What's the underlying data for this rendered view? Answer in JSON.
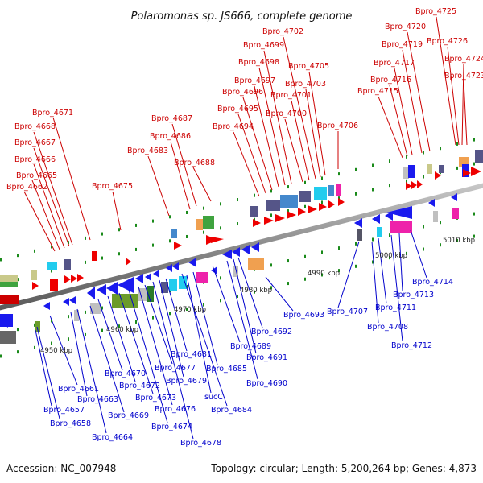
{
  "title": "Polaromonas sp. JS666, complete genome",
  "footer": {
    "accession": "Accession: NC_007948",
    "topology": "Topology: circular; Length: 5,200,264 bp; Genes: 4,873"
  },
  "colors": {
    "forward_label": "#cc0000",
    "reverse_label": "#0000cc",
    "backbone": "#808080",
    "tick": "#1a8a1a"
  },
  "kbp_labels": [
    "4950 kbp",
    "4960 kbp",
    "4970 kbp",
    "4980 kbp",
    "4990 kbp",
    "5000 kbp",
    "5010 kbp"
  ],
  "top_labels": [
    "Bpro_4662",
    "Bpro_4665",
    "Bpro_4666",
    "Bpro_4667",
    "Bpro_4668",
    "Bpro_4671",
    "Bpro_4675",
    "Bpro_4683",
    "Bpro_4686",
    "Bpro_4687",
    "Bpro_4688",
    "Bpro_4694",
    "Bpro_4695",
    "Bpro_4696",
    "Bpro_4697",
    "Bpro_4698",
    "Bpro_4699",
    "Bpro_4700",
    "Bpro_4701",
    "Bpro_4702",
    "Bpro_4703",
    "Bpro_4705",
    "Bpro_4706",
    "Bpro_4715",
    "Bpro_4716",
    "Bpro_4717",
    "Bpro_4719",
    "Bpro_4720",
    "Bpro_4723",
    "Bpro_4724",
    "Bpro_4725",
    "Bpro_4726"
  ],
  "bottom_labels": [
    "Bpro_4657",
    "Bpro_4658",
    "Bpro_4661",
    "Bpro_4663",
    "Bpro_4664",
    "Bpro_4669",
    "Bpro_4670",
    "Bpro_4672",
    "Bpro_4673",
    "Bpro_4674",
    "Bpro_4676",
    "Bpro_4677",
    "Bpro_4678",
    "Bpro_4679",
    "Bpro_4681",
    "Bpro_4684",
    "Bpro_4685",
    "sucC",
    "Bpro_4689",
    "Bpro_4690",
    "Bpro_4691",
    "Bpro_4692",
    "Bpro_4693",
    "Bpro_4707",
    "Bpro_4708",
    "Bpro_4711",
    "Bpro_4712",
    "Bpro_4713",
    "Bpro_4714"
  ]
}
